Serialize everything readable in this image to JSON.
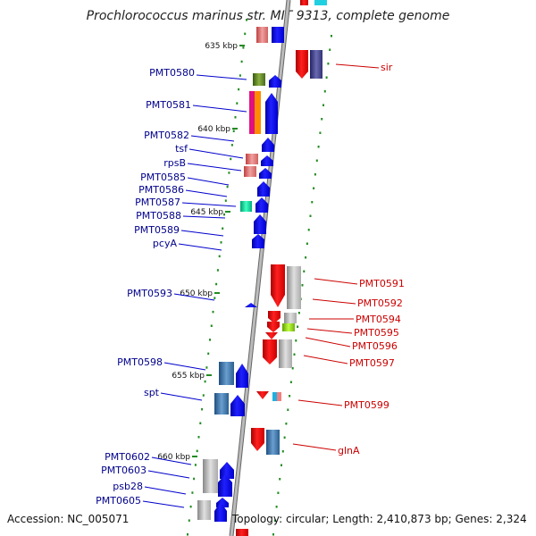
{
  "title": "Prochlorococcus marinus str. MIT 9313, complete genome",
  "footer": {
    "accession": "Accession: NC_005071",
    "summary": "Topology: circular; Length: 2,410,873 bp; Genes: 2,324"
  },
  "kbp_marks": [
    "635 kbp",
    "640 kbp",
    "645 kbp",
    "650 kbp",
    "655 kbp",
    "660 kbp"
  ],
  "left_genes": [
    "PMT0580",
    "PMT0581",
    "PMT0582",
    "tsf",
    "rpsB",
    "PMT0585",
    "PMT0586",
    "PMT0587",
    "PMT0588",
    "PMT0589",
    "pcyA",
    "PMT0593",
    "PMT0598",
    "spt",
    "PMT0602",
    "PMT0603",
    "psb28",
    "PMT0605"
  ],
  "right_genes": [
    "sir",
    "PMT0591",
    "PMT0592",
    "PMT0594",
    "PMT0595",
    "PMT0596",
    "PMT0597",
    "PMT0599",
    "glnA"
  ],
  "colors": {
    "forward_strand": "#0000ee",
    "reverse_strand": "#ee0000",
    "backbone": "#999999",
    "tick": "#228b22",
    "left_label": "#00008b",
    "right_label": "#cc0000"
  }
}
